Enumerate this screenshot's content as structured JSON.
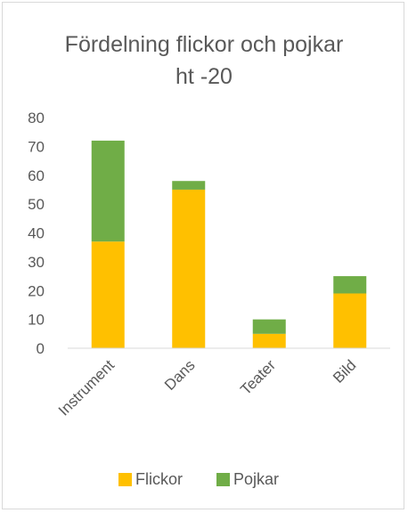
{
  "chart_data": {
    "type": "bar",
    "stacked": true,
    "title_lines": [
      "Fördelning flickor och pojkar",
      "ht -20"
    ],
    "categories": [
      "Instrument",
      "Dans",
      "Teater",
      "Bild"
    ],
    "series": [
      {
        "name": "Flickor",
        "color": "#ffc000",
        "values": [
          37,
          55,
          5,
          19
        ]
      },
      {
        "name": "Pojkar",
        "color": "#70ad47",
        "values": [
          35,
          3,
          5,
          6
        ]
      }
    ],
    "ylim": [
      0,
      80
    ],
    "y_ticks": [
      0,
      10,
      20,
      30,
      40,
      50,
      60,
      70,
      80
    ],
    "grid": false,
    "legend": "bottom",
    "xlabel": "",
    "ylabel": ""
  }
}
